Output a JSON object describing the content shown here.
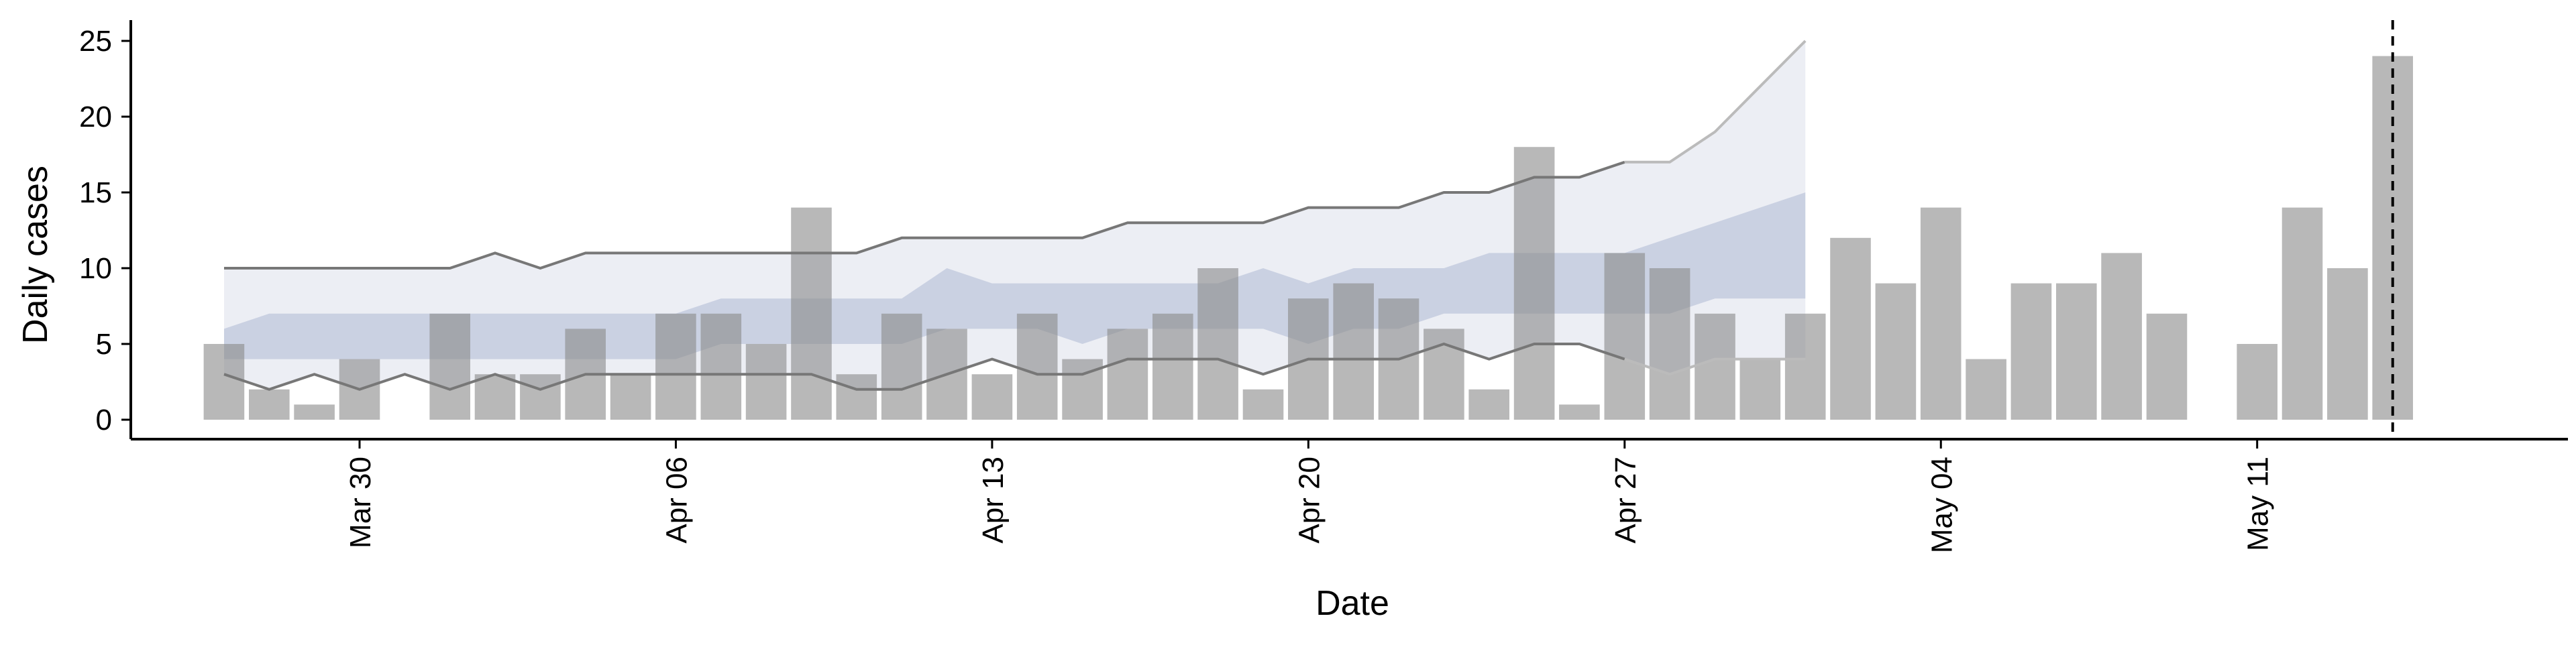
{
  "chart_data": {
    "type": "bar",
    "xlabel": "Date",
    "ylabel": "Daily cases",
    "ylim": [
      0,
      26
    ],
    "yticks": [
      0,
      5,
      10,
      15,
      20,
      25
    ],
    "xticks": [
      "Mar 30",
      "Apr 06",
      "Apr 13",
      "Apr 20",
      "Apr 27",
      "May 04",
      "May 11"
    ],
    "xtick_dates": [
      "2020-03-30",
      "2020-04-06",
      "2020-04-13",
      "2020-04-20",
      "2020-04-27",
      "2020-05-04",
      "2020-05-11"
    ],
    "grid": false,
    "colors": {
      "bars": "#b3b3b3",
      "band_outer": "#eceef4",
      "band_inner": "#c7cde0",
      "bound_line": "#777777",
      "bound_line_faded": "#bbbbbb",
      "vline": "#000000"
    },
    "bars": {
      "dates": [
        "2020-03-27",
        "2020-03-28",
        "2020-03-29",
        "2020-03-30",
        "2020-03-31",
        "2020-04-01",
        "2020-04-02",
        "2020-04-03",
        "2020-04-04",
        "2020-04-05",
        "2020-04-06",
        "2020-04-07",
        "2020-04-08",
        "2020-04-09",
        "2020-04-10",
        "2020-04-11",
        "2020-04-12",
        "2020-04-13",
        "2020-04-14",
        "2020-04-15",
        "2020-04-16",
        "2020-04-17",
        "2020-04-18",
        "2020-04-19",
        "2020-04-20",
        "2020-04-21",
        "2020-04-22",
        "2020-04-23",
        "2020-04-24",
        "2020-04-25",
        "2020-04-26",
        "2020-04-27",
        "2020-04-28",
        "2020-04-29",
        "2020-04-30",
        "2020-05-01",
        "2020-05-02",
        "2020-05-03",
        "2020-05-04",
        "2020-05-05",
        "2020-05-06",
        "2020-05-07",
        "2020-05-08",
        "2020-05-09",
        "2020-05-10",
        "2020-05-11",
        "2020-05-12",
        "2020-05-13",
        "2020-05-14",
        "2020-05-15"
      ],
      "values": [
        5,
        2,
        1,
        4,
        0,
        7,
        3,
        3,
        6,
        3,
        7,
        7,
        5,
        14,
        3,
        7,
        6,
        3,
        7,
        4,
        6,
        7,
        10,
        2,
        8,
        9,
        8,
        6,
        2,
        18,
        1,
        11,
        10,
        7,
        4,
        7,
        12,
        9,
        14,
        4,
        9,
        9,
        11,
        7,
        0,
        5,
        14,
        10,
        24,
        0
      ]
    },
    "forecast": {
      "dates": [
        "2020-03-27",
        "2020-03-28",
        "2020-03-29",
        "2020-03-30",
        "2020-03-31",
        "2020-04-01",
        "2020-04-02",
        "2020-04-03",
        "2020-04-04",
        "2020-04-05",
        "2020-04-06",
        "2020-04-07",
        "2020-04-08",
        "2020-04-09",
        "2020-04-10",
        "2020-04-11",
        "2020-04-12",
        "2020-04-13",
        "2020-04-14",
        "2020-04-15",
        "2020-04-16",
        "2020-04-17",
        "2020-04-18",
        "2020-04-19",
        "2020-04-20",
        "2020-04-21",
        "2020-04-22",
        "2020-04-23",
        "2020-04-24",
        "2020-04-25",
        "2020-04-26",
        "2020-04-27",
        "2020-04-28",
        "2020-04-29",
        "2020-04-30",
        "2020-05-01"
      ],
      "outer_upper": [
        10,
        10,
        10,
        10,
        10,
        10,
        11,
        10,
        11,
        11,
        11,
        11,
        11,
        11,
        11,
        12,
        12,
        12,
        12,
        12,
        13,
        13,
        13,
        13,
        14,
        14,
        14,
        15,
        15,
        16,
        16,
        17,
        17,
        19,
        22,
        25
      ],
      "outer_lower": [
        3,
        2,
        3,
        2,
        3,
        2,
        3,
        2,
        3,
        3,
        3,
        3,
        3,
        3,
        2,
        2,
        3,
        4,
        3,
        3,
        4,
        4,
        4,
        3,
        4,
        4,
        4,
        5,
        4,
        5,
        5,
        4,
        3,
        4,
        4,
        4
      ],
      "inner_upper": [
        6,
        7,
        7,
        7,
        7,
        7,
        7,
        7,
        7,
        7,
        7,
        8,
        8,
        8,
        8,
        8,
        10,
        9,
        9,
        9,
        9,
        9,
        9,
        10,
        9,
        10,
        10,
        10,
        11,
        11,
        11,
        11,
        12,
        13,
        14,
        15
      ],
      "inner_lower": [
        4,
        4,
        4,
        4,
        4,
        4,
        4,
        4,
        4,
        4,
        4,
        5,
        5,
        5,
        5,
        5,
        6,
        6,
        6,
        5,
        6,
        6,
        6,
        6,
        5,
        6,
        6,
        7,
        7,
        7,
        7,
        7,
        7,
        8,
        8,
        8
      ]
    },
    "vline_date": "2020-05-14"
  }
}
